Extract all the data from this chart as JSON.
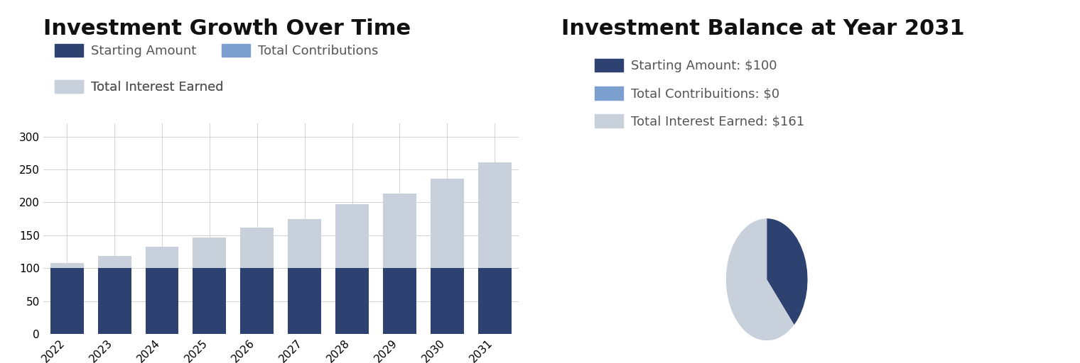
{
  "bar_title": "Investment Growth Over Time",
  "pie_title": "Investment Balance at Year 2031",
  "years": [
    2022,
    2023,
    2024,
    2025,
    2026,
    2027,
    2028,
    2029,
    2030,
    2031
  ],
  "starting_amount": [
    100,
    100,
    100,
    100,
    100,
    100,
    100,
    100,
    100,
    100
  ],
  "contributions": [
    0,
    0,
    0,
    0,
    0,
    0,
    0,
    0,
    0,
    0
  ],
  "interest": [
    8,
    19,
    33,
    47,
    62,
    75,
    97,
    113,
    136,
    161
  ],
  "color_starting": "#2E4272",
  "color_contributions": "#7B9FCF",
  "color_interest": "#C8D0DC",
  "bar_legend_labels": [
    "Starting Amount",
    "Total Contributions",
    "Total Interest Earned"
  ],
  "pie_legend_labels": [
    "Starting Amount: $100",
    "Total Contribuitions: $0",
    "Total Interest Earned: $161"
  ],
  "pie_values": [
    100,
    0,
    161
  ],
  "ylim": [
    0,
    320
  ],
  "yticks": [
    0,
    50,
    100,
    150,
    200,
    250,
    300
  ],
  "bg_color": "#FFFFFF",
  "title_fontsize": 22,
  "legend_fontsize": 13,
  "tick_fontsize": 11,
  "legend_text_color": "#555555"
}
